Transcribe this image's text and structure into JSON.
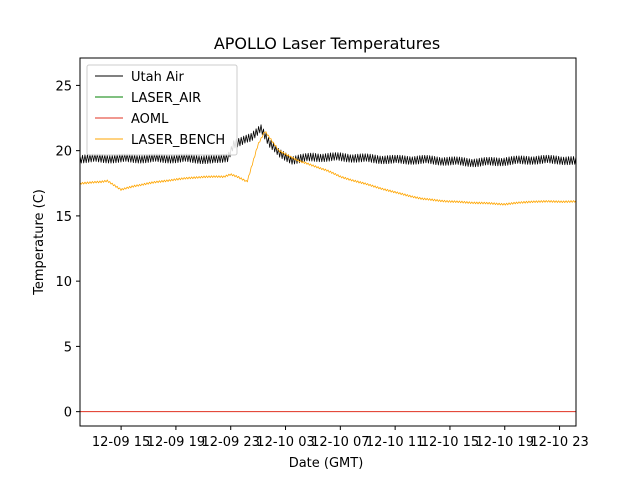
{
  "chart_data": {
    "type": "line",
    "title": "APOLLO Laser Temperatures",
    "xlabel": "Date (GMT)",
    "ylabel": "Temperature (C)",
    "x_unit": "hours since 2012-12-09 12:00 GMT",
    "xlim": [
      0,
      36.2
    ],
    "ylim": [
      -1.1,
      27.1
    ],
    "x_ticks": [
      {
        "value": 3,
        "label": "12-09 15"
      },
      {
        "value": 7,
        "label": "12-09 19"
      },
      {
        "value": 11,
        "label": "12-09 23"
      },
      {
        "value": 15,
        "label": "12-10 03"
      },
      {
        "value": 19,
        "label": "12-10 07"
      },
      {
        "value": 23,
        "label": "12-10 11"
      },
      {
        "value": 27,
        "label": "12-10 15"
      },
      {
        "value": 31,
        "label": "12-10 19"
      },
      {
        "value": 35,
        "label": "12-10 23"
      }
    ],
    "y_ticks": [
      {
        "value": 0,
        "label": "0"
      },
      {
        "value": 5,
        "label": "5"
      },
      {
        "value": 10,
        "label": "10"
      },
      {
        "value": 15,
        "label": "15"
      },
      {
        "value": 20,
        "label": "20"
      },
      {
        "value": 25,
        "label": "25"
      }
    ],
    "legend_position": "top-left",
    "series": [
      {
        "name": "Utah Air",
        "color": "#000000",
        "x": [
          0,
          2,
          4,
          6,
          8,
          10,
          10.8,
          11.2,
          11.8,
          12.5,
          13.2,
          13.8,
          14.5,
          15.5,
          17,
          19,
          21,
          23,
          25,
          27,
          29,
          31,
          33,
          35,
          36.2
        ],
        "y": [
          19.4,
          19.4,
          19.4,
          19.4,
          19.4,
          19.3,
          19.5,
          20.5,
          20.7,
          21.0,
          21.8,
          20.6,
          19.8,
          19.3,
          19.5,
          19.5,
          19.4,
          19.3,
          19.3,
          19.2,
          19.1,
          19.2,
          19.3,
          19.3,
          19.2
        ],
        "noise": 0.35
      },
      {
        "name": "LASER_AIR",
        "color": "#008000",
        "x": [],
        "y": []
      },
      {
        "name": "AOML",
        "color": "#e03020",
        "x": [
          0,
          36.2
        ],
        "y": [
          0.0,
          0.0
        ]
      },
      {
        "name": "LASER_BENCH",
        "color": "#ffa500",
        "x": [
          0,
          1.5,
          2,
          3,
          4,
          5,
          7,
          9,
          10.5,
          11,
          11.5,
          12.2,
          13,
          13.5,
          14.5,
          16,
          18,
          19,
          21,
          23,
          25,
          27,
          29,
          31,
          33,
          35,
          36.2
        ],
        "y": [
          17.5,
          17.6,
          17.7,
          17.0,
          17.3,
          17.5,
          17.8,
          18.0,
          18.0,
          18.2,
          18.0,
          17.6,
          20.5,
          21.5,
          20.0,
          19.2,
          18.5,
          18.0,
          17.4,
          16.8,
          16.3,
          16.1,
          16.0,
          15.9,
          16.1,
          16.1,
          16.1
        ],
        "noise": 0.08
      }
    ]
  }
}
